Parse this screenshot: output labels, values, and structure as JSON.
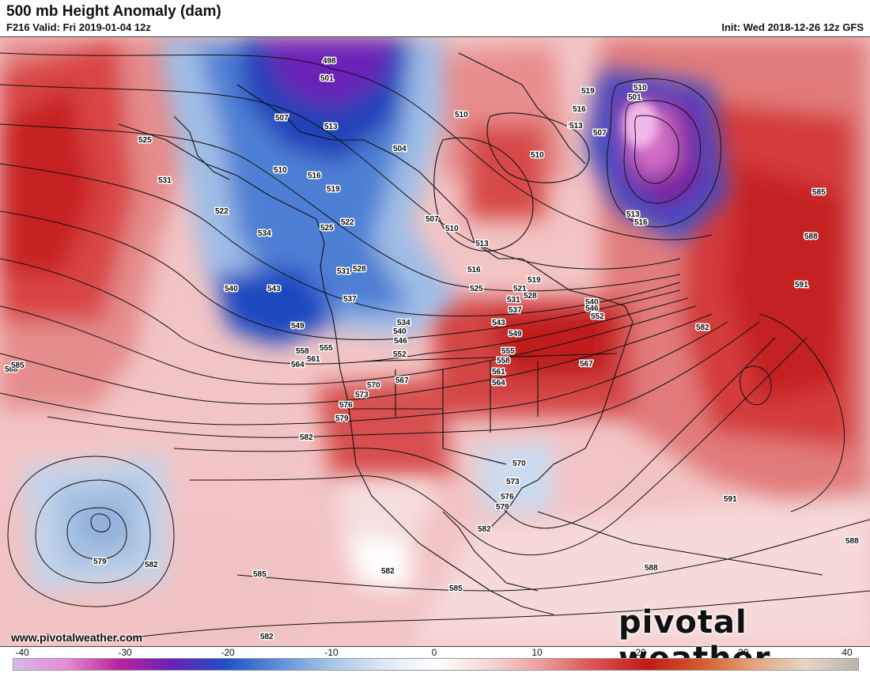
{
  "header": {
    "title": "500 mb Height Anomaly (dam)",
    "valid": "F216 Valid: Fri 2019-01-04 12z",
    "init": "Init: Wed 2018-12-26 12z GFS"
  },
  "footer": {
    "website": "www.pivotalweather.com",
    "brand": "pivotal weather"
  },
  "colorbar": {
    "ticks": [
      "-40",
      "-30",
      "-20",
      "-10",
      "0",
      "10",
      "20",
      "30",
      "40"
    ],
    "colors": [
      "#d7b9ea",
      "#e889d6",
      "#b7249e",
      "#6a20b8",
      "#1f4fc6",
      "#5c8fd8",
      "#a8c4e6",
      "#dde8f4",
      "#ffffff",
      "#f5d6d6",
      "#ec9e9e",
      "#de4f4f",
      "#c11a1a",
      "#d45a2a",
      "#e3a27a",
      "#e8d6c6",
      "#b8b4ae"
    ]
  },
  "contour_labels": [
    {
      "text": "498"
    },
    {
      "text": "501"
    },
    {
      "text": "507"
    },
    {
      "text": "513"
    },
    {
      "text": "504"
    },
    {
      "text": "510"
    },
    {
      "text": "516"
    },
    {
      "text": "519"
    },
    {
      "text": "522"
    },
    {
      "text": "525"
    },
    {
      "text": "531"
    },
    {
      "text": "522"
    },
    {
      "text": "534"
    },
    {
      "text": "540"
    },
    {
      "text": "543"
    },
    {
      "text": "525"
    },
    {
      "text": "528"
    },
    {
      "text": "531"
    },
    {
      "text": "537"
    },
    {
      "text": "549"
    },
    {
      "text": "558"
    },
    {
      "text": "555"
    },
    {
      "text": "561"
    },
    {
      "text": "564"
    },
    {
      "text": "534"
    },
    {
      "text": "540"
    },
    {
      "text": "546"
    },
    {
      "text": "552"
    },
    {
      "text": "507"
    },
    {
      "text": "510"
    },
    {
      "text": "513"
    },
    {
      "text": "516"
    },
    {
      "text": "519"
    },
    {
      "text": "525"
    },
    {
      "text": "521"
    },
    {
      "text": "528"
    },
    {
      "text": "531"
    },
    {
      "text": "537"
    },
    {
      "text": "543"
    },
    {
      "text": "549"
    },
    {
      "text": "540"
    },
    {
      "text": "546"
    },
    {
      "text": "552"
    },
    {
      "text": "555"
    },
    {
      "text": "558"
    },
    {
      "text": "561"
    },
    {
      "text": "564"
    },
    {
      "text": "567"
    },
    {
      "text": "567"
    },
    {
      "text": "570"
    },
    {
      "text": "573"
    },
    {
      "text": "576"
    },
    {
      "text": "579"
    },
    {
      "text": "582"
    },
    {
      "text": "510"
    },
    {
      "text": "510"
    },
    {
      "text": "513"
    },
    {
      "text": "519"
    },
    {
      "text": "516"
    },
    {
      "text": "513"
    },
    {
      "text": "507"
    },
    {
      "text": "510"
    },
    {
      "text": "501"
    },
    {
      "text": "513"
    },
    {
      "text": "516"
    },
    {
      "text": "585"
    },
    {
      "text": "588"
    },
    {
      "text": "591"
    },
    {
      "text": "582"
    },
    {
      "text": "588"
    },
    {
      "text": "570"
    },
    {
      "text": "573"
    },
    {
      "text": "576"
    },
    {
      "text": "579"
    },
    {
      "text": "582"
    },
    {
      "text": "582"
    },
    {
      "text": "579"
    },
    {
      "text": "582"
    },
    {
      "text": "585"
    },
    {
      "text": "582"
    },
    {
      "text": "585"
    },
    {
      "text": "588"
    },
    {
      "text": "591"
    },
    {
      "text": "588"
    },
    {
      "text": "585"
    }
  ]
}
